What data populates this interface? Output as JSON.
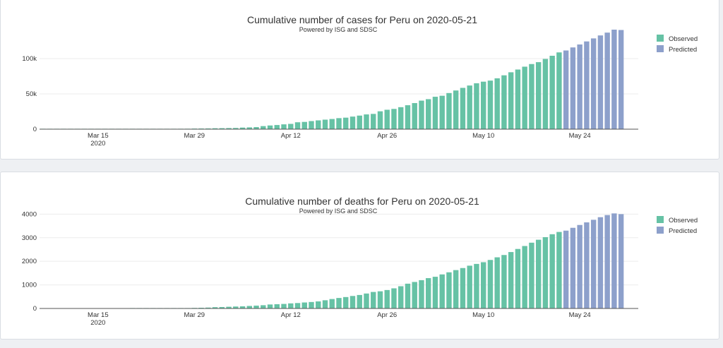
{
  "colors": {
    "observed": "#66c2a5",
    "predicted": "#8da0cb",
    "grid": "#ececec",
    "axis": "#555555"
  },
  "chart_data": [
    {
      "id": "cases",
      "type": "bar",
      "title": "Cumulative number of cases for Peru on 2020-05-21",
      "subtitle": "Powered by ISG and SDSC",
      "xlabel": "",
      "ylabel": "",
      "ylim": [
        0,
        140000
      ],
      "y_ticks": [
        0,
        50000,
        100000
      ],
      "y_tick_labels": [
        "0",
        "50k",
        "100k"
      ],
      "x_ticks": [
        {
          "label": "Mar 15",
          "sublabel": "2020",
          "day": 8
        },
        {
          "label": "Mar 29",
          "sublabel": "",
          "day": 22
        },
        {
          "label": "Apr 12",
          "sublabel": "",
          "day": 36
        },
        {
          "label": "Apr 26",
          "sublabel": "",
          "day": 50
        },
        {
          "label": "May 10",
          "sublabel": "",
          "day": 64
        },
        {
          "label": "May 24",
          "sublabel": "",
          "day": 78
        }
      ],
      "x_domain": [
        0,
        87
      ],
      "legend": [
        "Observed",
        "Predicted"
      ],
      "legend_position": "top-right",
      "series": [
        {
          "name": "Observed",
          "start_day": 0,
          "values": [
            6,
            7,
            9,
            11,
            15,
            22,
            38,
            43,
            71,
            86,
            117,
            145,
            234,
            263,
            318,
            363,
            395,
            416,
            480,
            580,
            635,
            671,
            852,
            950,
            1065,
            1323,
            1414,
            1595,
            1746,
            2281,
            2561,
            2954,
            4342,
            5256,
            5897,
            6848,
            7519,
            9784,
            10303,
            11475,
            12491,
            13489,
            14420,
            15628,
            16325,
            17837,
            19250,
            20914,
            21648,
            25331,
            27517,
            28699,
            31190,
            33931,
            36976,
            40459,
            42534,
            45928,
            47372,
            51189,
            54817,
            58526,
            61847,
            65015,
            67307,
            68822,
            72059,
            76306,
            80604,
            84495,
            88541,
            92273,
            94933,
            99483,
            104020,
            108769
          ]
        },
        {
          "name": "Predicted",
          "start_day": 76,
          "values": [
            111500,
            115800,
            120000,
            124300,
            128600,
            132800,
            136800,
            141000,
            140500
          ]
        }
      ]
    },
    {
      "id": "deaths",
      "type": "bar",
      "title": "Cumulative number of deaths for Peru on 2020-05-21",
      "subtitle": "Powered by ISG and SDSC",
      "xlabel": "",
      "ylabel": "",
      "ylim": [
        0,
        4100
      ],
      "y_ticks": [
        0,
        1000,
        2000,
        3000,
        4000
      ],
      "y_tick_labels": [
        "0",
        "1000",
        "2000",
        "3000",
        "4000"
      ],
      "x_ticks": [
        {
          "label": "Mar 15",
          "sublabel": "2020",
          "day": 8
        },
        {
          "label": "Mar 29",
          "sublabel": "",
          "day": 22
        },
        {
          "label": "Apr 12",
          "sublabel": "",
          "day": 36
        },
        {
          "label": "Apr 26",
          "sublabel": "",
          "day": 50
        },
        {
          "label": "May 10",
          "sublabel": "",
          "day": 64
        },
        {
          "label": "May 24",
          "sublabel": "",
          "day": 78
        }
      ],
      "x_domain": [
        0,
        87
      ],
      "legend": [
        "Observed",
        "Predicted"
      ],
      "legend_position": "top-right",
      "series": [
        {
          "name": "Observed",
          "start_day": 0,
          "values": [
            0,
            0,
            0,
            0,
            0,
            0,
            0,
            0,
            0,
            0,
            0,
            0,
            0,
            2,
            3,
            5,
            5,
            7,
            9,
            11,
            16,
            18,
            24,
            30,
            38,
            55,
            61,
            73,
            83,
            92,
            107,
            121,
            138,
            169,
            181,
            193,
            216,
            230,
            254,
            274,
            300,
            348,
            400,
            445,
            484,
            530,
            572,
            634,
            700,
            728,
            782,
            854,
            943,
            1051,
            1124,
            1200,
            1286,
            1344,
            1444,
            1533,
            1627,
            1714,
            1814,
            1889,
            1961,
            2057,
            2169,
            2267,
            2392,
            2523,
            2648,
            2789,
            2914,
            3024,
            3148,
            3244
          ]
        },
        {
          "name": "Predicted",
          "start_day": 76,
          "values": [
            3300,
            3420,
            3540,
            3650,
            3760,
            3870,
            3960,
            4030,
            4000
          ]
        }
      ]
    }
  ]
}
